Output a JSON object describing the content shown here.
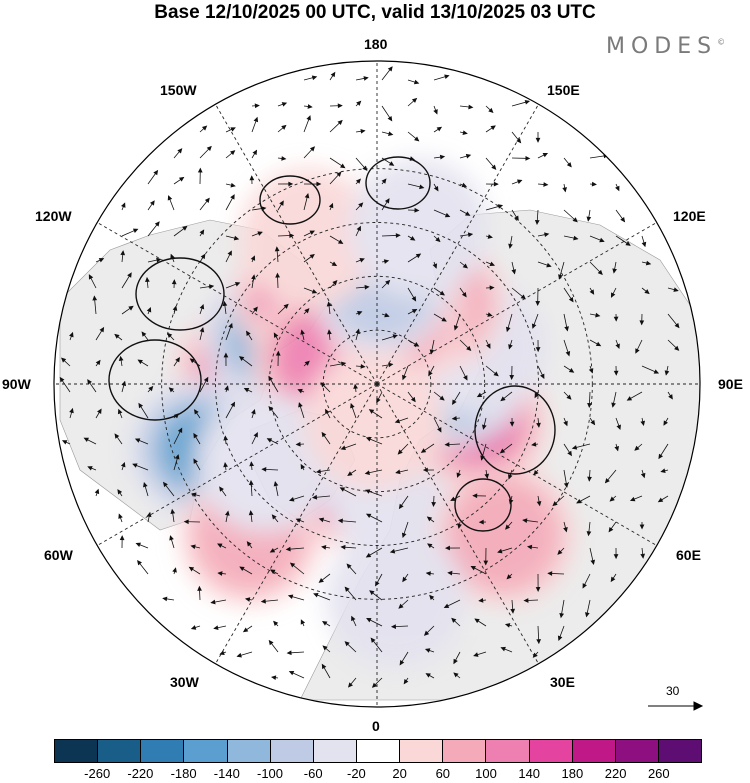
{
  "title": "Base 12/10/2025 00 UTC, valid 13/10/2025 03 UTC",
  "brand": {
    "name": "MODES",
    "mark": "©"
  },
  "map": {
    "projection": "north polar stereographic",
    "longitude_labels": {
      "top": "180",
      "bottom": "0",
      "left": "90W",
      "right": "90E",
      "upper_left": "150W",
      "upper_right": "150E",
      "mid_left": "120W",
      "mid_right": "120E",
      "low_left": "60W",
      "low_right": "60E",
      "bottom_left": "30W",
      "bottom_right": "30E"
    },
    "wind_reference_value": "30",
    "anomalies": [
      {
        "lon": -95,
        "lat": 53,
        "value": 200
      },
      {
        "lon": -115,
        "lat": 58,
        "value": -200
      },
      {
        "lon": -140,
        "lat": 58,
        "value": 140
      },
      {
        "lon": -115,
        "lat": 73,
        "value": 120
      },
      {
        "lon": -70,
        "lat": 37,
        "value": -150
      },
      {
        "lon": -25,
        "lat": 62,
        "value": 140
      },
      {
        "lon": -40,
        "lat": 35,
        "value": 80
      },
      {
        "lon": -55,
        "lat": 52,
        "value": -60
      },
      {
        "lon": 30,
        "lat": 63,
        "value": -130
      },
      {
        "lon": 10,
        "lat": 60,
        "value": -50
      },
      {
        "lon": 70,
        "lat": 60,
        "value": 160
      },
      {
        "lon": 40,
        "lat": 35,
        "value": 70
      },
      {
        "lon": 95,
        "lat": 68,
        "value": -110
      },
      {
        "lon": 110,
        "lat": 60,
        "value": -40
      },
      {
        "lon": 145,
        "lat": 62,
        "value": 80
      },
      {
        "lon": 165,
        "lat": 70,
        "value": 90
      },
      {
        "lon": 178,
        "lat": 62,
        "value": -100
      },
      {
        "lon": -155,
        "lat": 45,
        "value": 30
      },
      {
        "lon": 165,
        "lat": 45,
        "value": -30
      },
      {
        "lon": -5,
        "lat": 80,
        "value": 60
      },
      {
        "lon": 5,
        "lat": 30,
        "value": -20
      }
    ]
  },
  "colorbar": {
    "colors": [
      "#0b3552",
      "#185e89",
      "#2f7db3",
      "#5a9fcf",
      "#90b8dc",
      "#bfcbe4",
      "#e3e2ef",
      "#ffffff",
      "#fad8d8",
      "#f4aab9",
      "#ee7fb1",
      "#e4449f",
      "#c01886",
      "#8e0f7f",
      "#5e0d72"
    ],
    "ticks": [
      "-260",
      "-220",
      "-180",
      "-140",
      "-100",
      "-60",
      "-20",
      "20",
      "60",
      "100",
      "140",
      "180",
      "220",
      "260"
    ]
  }
}
